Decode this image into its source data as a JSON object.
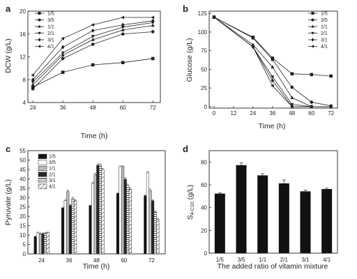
{
  "figure": {
    "panel_letters": [
      "a",
      "b",
      "c",
      "d"
    ]
  },
  "chart_data": [
    {
      "panel": "a",
      "type": "line",
      "xlabel": "Time (h)",
      "ylabel": "DCW (g/L)",
      "x": [
        24,
        36,
        48,
        60,
        72
      ],
      "xlim": [
        22,
        75
      ],
      "ylim": [
        4,
        20
      ],
      "yticks": [
        4,
        8,
        12,
        16,
        20
      ],
      "legend_position": "top-left",
      "series": [
        {
          "name": "1/5",
          "marker": "square",
          "values": [
            6.7,
            9.3,
            10.6,
            11.0,
            11.7
          ]
        },
        {
          "name": "3/5",
          "marker": "circle",
          "values": [
            6.4,
            11.7,
            14.2,
            16.0,
            16.4
          ]
        },
        {
          "name": "1/1",
          "marker": "triangle-up",
          "values": [
            7.1,
            12.3,
            15.0,
            16.7,
            17.5
          ]
        },
        {
          "name": "2/1",
          "marker": "triangle-down",
          "values": [
            7.6,
            12.7,
            15.6,
            17.2,
            18.0
          ]
        },
        {
          "name": "3/1",
          "marker": "diamond",
          "values": [
            8.0,
            13.7,
            16.6,
            17.6,
            18.3
          ]
        },
        {
          "name": "4/1",
          "marker": "triangle-left",
          "values": [
            8.8,
            15.2,
            17.6,
            18.9,
            18.9
          ]
        }
      ]
    },
    {
      "panel": "b",
      "type": "line",
      "xlabel": "Time (h)",
      "ylabel": "Glucose (g/L)",
      "x": [
        0,
        24,
        36,
        48,
        60,
        72
      ],
      "xlim": [
        -3,
        76
      ],
      "ylim": [
        -2,
        128
      ],
      "xticks": [
        0,
        12,
        24,
        36,
        48,
        60,
        72
      ],
      "yticks": [
        0,
        25,
        50,
        75,
        100,
        125
      ],
      "legend_position": "top-right",
      "series": [
        {
          "name": "1/5",
          "marker": "square",
          "values": [
            120,
            93,
            65,
            44,
            43,
            41
          ]
        },
        {
          "name": "3/5",
          "marker": "circle",
          "values": [
            120,
            92,
            63,
            26,
            6,
            1
          ]
        },
        {
          "name": "1/1",
          "marker": "triangle-up",
          "values": [
            120,
            83,
            53,
            12,
            0,
            0
          ]
        },
        {
          "name": "2/1",
          "marker": "triangle-down",
          "values": [
            120,
            80,
            40,
            3,
            0,
            0
          ]
        },
        {
          "name": "3/1",
          "marker": "diamond",
          "values": [
            120,
            80,
            35,
            0,
            0,
            0
          ]
        },
        {
          "name": "4/1",
          "marker": "triangle-left",
          "values": [
            120,
            80,
            28,
            0,
            0,
            0
          ]
        }
      ]
    },
    {
      "panel": "c",
      "type": "bar",
      "xlabel": "Time (h)",
      "ylabel": "Pyruvate (g/L)",
      "categories": [
        "24",
        "36",
        "48",
        "60",
        "72"
      ],
      "ylim": [
        0,
        55
      ],
      "yticks": [
        0,
        5,
        10,
        15,
        20,
        25,
        30,
        35,
        40,
        45,
        50,
        55
      ],
      "legend_position": "top-left",
      "series": [
        {
          "name": "1/5",
          "fill": "black",
          "values": [
            9.2,
            24.5,
            25.7,
            32.2,
            31.0
          ],
          "errors": [
            0.3,
            0.4,
            0.3,
            0.4,
            0.4
          ]
        },
        {
          "name": "3/5",
          "fill": "white",
          "values": [
            11.2,
            28.5,
            37.7,
            46.5,
            43.5
          ],
          "errors": [
            0.4,
            0.4,
            0.5,
            0.4,
            0.3
          ]
        },
        {
          "name": "1/1",
          "fill": "lightgray",
          "values": [
            10.7,
            33.2,
            42.3,
            46.5,
            33.8
          ],
          "errors": [
            0.5,
            0.9,
            0.8,
            0.5,
            0.9
          ]
        },
        {
          "name": "2/1",
          "fill": "darkgray",
          "values": [
            10.8,
            25.8,
            47.3,
            39.8,
            28.3
          ],
          "errors": [
            0.4,
            0.5,
            0.8,
            0.9,
            0.5
          ]
        },
        {
          "name": "3/1",
          "fill": "horizontal",
          "values": [
            11.0,
            29.5,
            47.5,
            36.5,
            22.3
          ],
          "errors": [
            0.4,
            0.7,
            0.5,
            0.7,
            0.4
          ]
        },
        {
          "name": "4/1",
          "fill": "diagonal",
          "values": [
            11.3,
            28.3,
            45.0,
            34.5,
            18.5
          ],
          "errors": [
            0.4,
            0.5,
            0.5,
            0.5,
            0.5
          ]
        }
      ]
    },
    {
      "panel": "d",
      "type": "bar",
      "xlabel": "The added ratio of vitamin mixture",
      "ylabel_main": "S",
      "ylabel_sub": "4-C10",
      "ylabel_unit": " (g/L)",
      "categories": [
        "1/5",
        "3/5",
        "1/1",
        "2/1",
        "3/1",
        "4/1"
      ],
      "values": [
        52.3,
        77.3,
        68.3,
        61.3,
        54.3,
        56.3
      ],
      "errors": [
        0.6,
        2.0,
        1.5,
        3.0,
        1.2,
        0.8
      ],
      "ylim": [
        0,
        90
      ],
      "yticks": [
        0,
        20,
        40,
        60,
        80
      ]
    }
  ]
}
